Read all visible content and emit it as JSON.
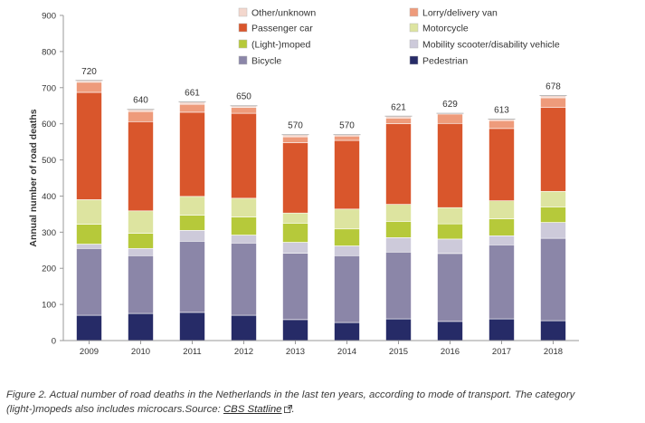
{
  "chart_data": {
    "type": "stacked_bar",
    "title": "",
    "xlabel": "",
    "ylabel": "Annual number of road deaths",
    "ylim": [
      0,
      900
    ],
    "yticks": [
      0,
      100,
      200,
      300,
      400,
      500,
      600,
      700,
      800,
      900
    ],
    "categories": [
      "2009",
      "2010",
      "2011",
      "2012",
      "2013",
      "2014",
      "2015",
      "2016",
      "2017",
      "2018"
    ],
    "totals": [
      720,
      640,
      661,
      650,
      570,
      570,
      621,
      629,
      613,
      678
    ],
    "series": [
      {
        "name": "Pedestrian",
        "color": "#262b67",
        "values": [
          70,
          75,
          78,
          70,
          58,
          50,
          60,
          53,
          60,
          55
        ]
      },
      {
        "name": "Bicycle",
        "color": "#8b86a8",
        "values": [
          185,
          160,
          197,
          200,
          184,
          185,
          185,
          188,
          205,
          228
        ]
      },
      {
        "name": "Mobility scooter/disability vehicle",
        "color": "#cdcada",
        "values": [
          12,
          20,
          30,
          22,
          30,
          27,
          40,
          40,
          25,
          44
        ]
      },
      {
        "name": "(Light-)moped",
        "color": "#b6c93a",
        "values": [
          55,
          42,
          42,
          50,
          53,
          47,
          45,
          42,
          47,
          43
        ]
      },
      {
        "name": "Motorcycle",
        "color": "#dde4a0",
        "values": [
          68,
          62,
          52,
          52,
          28,
          55,
          47,
          45,
          50,
          43
        ]
      },
      {
        "name": "Passenger car",
        "color": "#d9562c",
        "values": [
          297,
          247,
          233,
          235,
          195,
          190,
          223,
          233,
          200,
          232
        ]
      },
      {
        "name": "Lorry/delivery van",
        "color": "#ee9b7b",
        "values": [
          28,
          28,
          22,
          16,
          16,
          12,
          16,
          26,
          22,
          27
        ]
      },
      {
        "name": "Other/unknown",
        "color": "#f3d7cd",
        "values": [
          5,
          6,
          7,
          5,
          6,
          4,
          5,
          2,
          4,
          6
        ]
      }
    ],
    "legend_order": [
      [
        "Other/unknown",
        "Lorry/delivery van"
      ],
      [
        "Passenger car",
        "Motorcycle"
      ],
      [
        "(Light-)moped",
        "Mobility scooter/disability vehicle"
      ],
      [
        "Bicycle",
        "Pedestrian"
      ]
    ],
    "legend_position": "top",
    "grid": false
  },
  "caption": {
    "text": "Figure 2. Actual number of road deaths in the Netherlands in the last ten years, according to mode of transport. The category (light-)mopeds also includes microcars.Source: ",
    "link_text": "CBS Statline",
    "end": "."
  }
}
